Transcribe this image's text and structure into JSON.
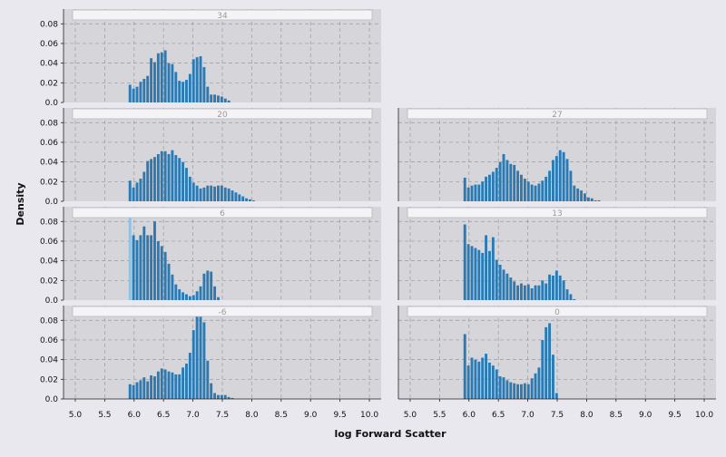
{
  "chart_data": {
    "type": "bar",
    "xlabel": "log Forward Scatter",
    "ylabel": "Density",
    "xlim": [
      4.8,
      10.2
    ],
    "ylim": [
      0,
      0.095
    ],
    "xticks": [
      "5.0",
      "5.5",
      "6.0",
      "6.5",
      "7.0",
      "7.5",
      "8.0",
      "8.5",
      "9.0",
      "9.5",
      "10.0"
    ],
    "yticks": [
      "0.0",
      "0.02",
      "0.04",
      "0.06",
      "0.08"
    ],
    "grid": true,
    "bin_start": 5.9,
    "bin_width": 0.06,
    "bar_color": "#2a7ab4",
    "highlight_color": "#8ec3e6",
    "panel_bg": "#d5d5da",
    "strip_bg": "#f4f4f6",
    "panels": [
      {
        "title": "34",
        "values": [
          0.018,
          0.014,
          0.016,
          0.021,
          0.024,
          0.027,
          0.045,
          0.041,
          0.05,
          0.051,
          0.053,
          0.04,
          0.039,
          0.031,
          0.022,
          0.021,
          0.023,
          0.029,
          0.044,
          0.046,
          0.047,
          0.036,
          0.016,
          0.008,
          0.008,
          0.007,
          0.006,
          0.004,
          0.002
        ]
      },
      {
        "title": "20",
        "values": [
          0.021,
          0.014,
          0.019,
          0.023,
          0.03,
          0.041,
          0.043,
          0.045,
          0.048,
          0.051,
          0.051,
          0.048,
          0.052,
          0.047,
          0.044,
          0.04,
          0.034,
          0.025,
          0.019,
          0.016,
          0.013,
          0.014,
          0.016,
          0.016,
          0.015,
          0.016,
          0.016,
          0.014,
          0.013,
          0.011,
          0.009,
          0.007,
          0.005,
          0.003,
          0.002,
          0.001
        ]
      },
      {
        "title": "27",
        "values": [
          0.024,
          0.014,
          0.016,
          0.017,
          0.017,
          0.02,
          0.025,
          0.027,
          0.03,
          0.034,
          0.04,
          0.048,
          0.042,
          0.038,
          0.037,
          0.031,
          0.027,
          0.023,
          0.02,
          0.017,
          0.016,
          0.018,
          0.021,
          0.025,
          0.031,
          0.042,
          0.046,
          0.052,
          0.05,
          0.043,
          0.031,
          0.016,
          0.013,
          0.011,
          0.008,
          0.004,
          0.003,
          0.001,
          0.001
        ]
      },
      {
        "title": "6",
        "values": [
          0.09,
          0.066,
          0.061,
          0.066,
          0.075,
          0.066,
          0.066,
          0.08,
          0.06,
          0.055,
          0.049,
          0.037,
          0.026,
          0.016,
          0.011,
          0.008,
          0.006,
          0.004,
          0.005,
          0.009,
          0.014,
          0.027,
          0.03,
          0.029,
          0.014,
          0.003
        ]
      },
      {
        "title": "13",
        "values": [
          0.077,
          0.057,
          0.055,
          0.053,
          0.051,
          0.048,
          0.066,
          0.05,
          0.064,
          0.041,
          0.036,
          0.031,
          0.027,
          0.023,
          0.019,
          0.015,
          0.017,
          0.015,
          0.016,
          0.012,
          0.015,
          0.015,
          0.02,
          0.017,
          0.026,
          0.025,
          0.03,
          0.025,
          0.02,
          0.011,
          0.006,
          0.001
        ]
      },
      {
        "title": "-6",
        "values": [
          0.015,
          0.014,
          0.017,
          0.019,
          0.022,
          0.018,
          0.024,
          0.023,
          0.028,
          0.031,
          0.03,
          0.028,
          0.027,
          0.025,
          0.025,
          0.032,
          0.036,
          0.047,
          0.07,
          0.089,
          0.087,
          0.078,
          0.039,
          0.016,
          0.006,
          0.004,
          0.004,
          0.004,
          0.002,
          0.001
        ]
      },
      {
        "title": "0",
        "values": [
          0.066,
          0.034,
          0.042,
          0.04,
          0.038,
          0.042,
          0.046,
          0.037,
          0.034,
          0.03,
          0.023,
          0.022,
          0.019,
          0.017,
          0.016,
          0.015,
          0.015,
          0.016,
          0.015,
          0.021,
          0.026,
          0.032,
          0.06,
          0.073,
          0.077,
          0.045,
          0.006
        ]
      }
    ]
  }
}
